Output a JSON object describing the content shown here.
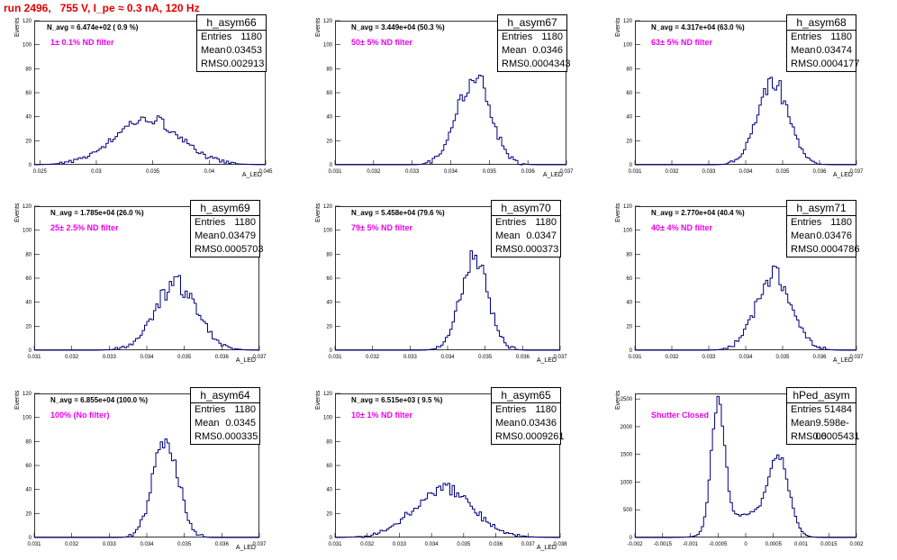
{
  "title": "run 2496,   755 V, I_pe ≈ 0.3 nA, 120 Hz",
  "colors": {
    "title": "#e00000",
    "hist": "#00007f",
    "filter": "#ee00ee"
  },
  "chart_data": [
    {
      "type": "histogram",
      "name": "h_asym66",
      "navg": "N_avg = 6.474e+02 ( 0.9 %)",
      "filter": "1± 0.1% ND filter",
      "entries": "1180",
      "mean": "0.03453",
      "rms": "0.002913",
      "xlabel": "A_LED",
      "ylabel": "Events",
      "xlim": [
        0.0245,
        0.045
      ],
      "ylim": [
        0,
        120
      ],
      "xticks": [
        0.025,
        0.03,
        0.035,
        0.04,
        0.045
      ],
      "xtick_labels": [
        "0.025",
        "0.03",
        "0.035",
        "0.04",
        "0.045"
      ],
      "yticks": [
        0,
        20,
        40,
        60,
        80,
        100,
        120
      ],
      "shape": {
        "peaks": [
          {
            "mu": 0.0345,
            "sigma": 0.0029,
            "amp": 38
          }
        ],
        "noise": 0.12,
        "seed": 7
      }
    },
    {
      "type": "histogram",
      "name": "h_asym67",
      "navg": "N_avg = 3.449e+04 (50.3 %)",
      "filter": "50± 5% ND filter",
      "entries": "1180",
      "mean": "0.0346",
      "rms": "0.0004343",
      "xlabel": "A_LED",
      "ylabel": "Events",
      "xlim": [
        0.031,
        0.037
      ],
      "ylim": [
        0,
        120
      ],
      "xticks": [
        0.031,
        0.032,
        0.033,
        0.034,
        0.035,
        0.036,
        0.037
      ],
      "xtick_labels": [
        "0.031",
        "0.032",
        "0.033",
        "0.034",
        "0.035",
        "0.036",
        "0.037"
      ],
      "yticks": [
        0,
        20,
        40,
        60,
        80,
        100,
        120
      ],
      "shape": {
        "peaks": [
          {
            "mu": 0.0346,
            "sigma": 0.00043,
            "amp": 72
          }
        ],
        "noise": 0.14,
        "seed": 11
      }
    },
    {
      "type": "histogram",
      "name": "h_asym68",
      "navg": "N_avg = 4.317e+04 (63.0 %)",
      "filter": "63± 5% ND filter",
      "entries": "1180",
      "mean": "0.03474",
      "rms": "0.0004177",
      "xlabel": "A_LED",
      "ylabel": "Events",
      "xlim": [
        0.031,
        0.037
      ],
      "ylim": [
        0,
        120
      ],
      "xticks": [
        0.031,
        0.032,
        0.033,
        0.034,
        0.035,
        0.036,
        0.037
      ],
      "xtick_labels": [
        "0.031",
        "0.032",
        "0.033",
        "0.034",
        "0.035",
        "0.036",
        "0.037"
      ],
      "yticks": [
        0,
        20,
        40,
        60,
        80,
        100,
        120
      ],
      "shape": {
        "peaks": [
          {
            "mu": 0.03474,
            "sigma": 0.00042,
            "amp": 68
          }
        ],
        "noise": 0.14,
        "seed": 13
      }
    },
    {
      "type": "histogram",
      "name": "h_asym69",
      "navg": "N_avg = 1.785e+04 (26.0 %)",
      "filter": "25± 2.5% ND filter",
      "entries": "1180",
      "mean": "0.03479",
      "rms": "0.0005703",
      "xlabel": "A_LED",
      "ylabel": "Events",
      "xlim": [
        0.031,
        0.037
      ],
      "ylim": [
        0,
        120
      ],
      "xticks": [
        0.031,
        0.032,
        0.033,
        0.034,
        0.035,
        0.036,
        0.037
      ],
      "xtick_labels": [
        "0.031",
        "0.032",
        "0.033",
        "0.034",
        "0.035",
        "0.036",
        "0.037"
      ],
      "yticks": [
        0,
        20,
        40,
        60,
        80,
        100,
        120
      ],
      "shape": {
        "peaks": [
          {
            "mu": 0.03479,
            "sigma": 0.00057,
            "amp": 55
          }
        ],
        "noise": 0.14,
        "seed": 17
      }
    },
    {
      "type": "histogram",
      "name": "h_asym70",
      "navg": "N_avg = 5.458e+04 (79.6 %)",
      "filter": "79± 5% ND filter",
      "entries": "1180",
      "mean": "0.0347",
      "rms": "0.000373",
      "xlabel": "A_LED",
      "ylabel": "Events",
      "xlim": [
        0.031,
        0.037
      ],
      "ylim": [
        0,
        120
      ],
      "xticks": [
        0.031,
        0.032,
        0.033,
        0.034,
        0.035,
        0.036,
        0.037
      ],
      "xtick_labels": [
        "0.031",
        "0.032",
        "0.033",
        "0.034",
        "0.035",
        "0.036",
        "0.037"
      ],
      "yticks": [
        0,
        20,
        40,
        60,
        80,
        100,
        120
      ],
      "shape": {
        "peaks": [
          {
            "mu": 0.0347,
            "sigma": 0.00037,
            "amp": 76
          }
        ],
        "noise": 0.12,
        "seed": 19
      }
    },
    {
      "type": "histogram",
      "name": "h_asym71",
      "navg": "N_avg = 2.770e+04 (40.4 %)",
      "filter": "40± 4% ND filter",
      "entries": "1180",
      "mean": "0.03476",
      "rms": "0.0004786",
      "xlabel": "A_LED",
      "ylabel": "Events",
      "xlim": [
        0.031,
        0.037
      ],
      "ylim": [
        0,
        120
      ],
      "xticks": [
        0.031,
        0.032,
        0.033,
        0.034,
        0.035,
        0.036,
        0.037
      ],
      "xtick_labels": [
        "0.031",
        "0.032",
        "0.033",
        "0.034",
        "0.035",
        "0.036",
        "0.037"
      ],
      "yticks": [
        0,
        20,
        40,
        60,
        80,
        100,
        120
      ],
      "shape": {
        "peaks": [
          {
            "mu": 0.03476,
            "sigma": 0.00048,
            "amp": 62
          }
        ],
        "noise": 0.14,
        "seed": 23
      }
    },
    {
      "type": "histogram",
      "name": "h_asym64",
      "navg": "N_avg = 6.855e+04 (100.0 %)",
      "filter": "100% (No filter)",
      "entries": "1180",
      "mean": "0.0345",
      "rms": "0.000335",
      "xlabel": "A_LED",
      "ylabel": "Events",
      "xlim": [
        0.031,
        0.037
      ],
      "ylim": [
        0,
        120
      ],
      "xticks": [
        0.031,
        0.032,
        0.033,
        0.034,
        0.035,
        0.036,
        0.037
      ],
      "xtick_labels": [
        "0.031",
        "0.032",
        "0.033",
        "0.034",
        "0.035",
        "0.036",
        "0.037"
      ],
      "yticks": [
        0,
        20,
        40,
        60,
        80,
        100,
        120
      ],
      "shape": {
        "peaks": [
          {
            "mu": 0.0345,
            "sigma": 0.00033,
            "amp": 85
          }
        ],
        "noise": 0.12,
        "seed": 29
      }
    },
    {
      "type": "histogram",
      "name": "h_asym65",
      "navg": "N_avg = 6.515e+03 ( 9.5 %)",
      "filter": "10± 1% ND filter",
      "entries": "1180",
      "mean": "0.03436",
      "rms": "0.0009261",
      "xlabel": "A_LED",
      "ylabel": "Events",
      "xlim": [
        0.031,
        0.038
      ],
      "ylim": [
        0,
        120
      ],
      "xticks": [
        0.031,
        0.032,
        0.033,
        0.034,
        0.035,
        0.036,
        0.037,
        0.038
      ],
      "xtick_labels": [
        "0.031",
        "0.032",
        "0.033",
        "0.034",
        "0.035",
        "0.036",
        "0.037",
        "0.038"
      ],
      "yticks": [
        0,
        20,
        40,
        60,
        80,
        100,
        120
      ],
      "shape": {
        "peaks": [
          {
            "mu": 0.03436,
            "sigma": 0.00093,
            "amp": 40
          }
        ],
        "noise": 0.15,
        "seed": 31
      }
    },
    {
      "type": "histogram",
      "name": "hPed_asym",
      "navg": "",
      "filter": "Shutter Closed",
      "entries": "51484",
      "mean": "9.598e-06",
      "rms": "0.0005431",
      "xlabel": "",
      "ylabel": "Events",
      "xlim": [
        -0.002,
        0.002
      ],
      "ylim": [
        0,
        2600
      ],
      "xticks": [
        -0.002,
        -0.0015,
        -0.001,
        -0.0005,
        0,
        0.0005,
        0.001,
        0.0015,
        0.002
      ],
      "xtick_labels": [
        "-0.002",
        "-0.0015",
        "-0.001",
        "-0.0005",
        "0",
        "0.0005",
        "0.001",
        "0.0015",
        "0.002"
      ],
      "yticks": [
        0,
        500,
        1000,
        1500,
        2000,
        2500
      ],
      "shape": {
        "peaks": [
          {
            "mu": -0.0005,
            "sigma": 0.00012,
            "amp": 2350
          },
          {
            "mu": 0.0006,
            "sigma": 0.00018,
            "amp": 1320
          },
          {
            "mu": 5e-05,
            "sigma": 0.0004,
            "amp": 420
          }
        ],
        "noise": 0.05,
        "seed": 37
      }
    }
  ]
}
